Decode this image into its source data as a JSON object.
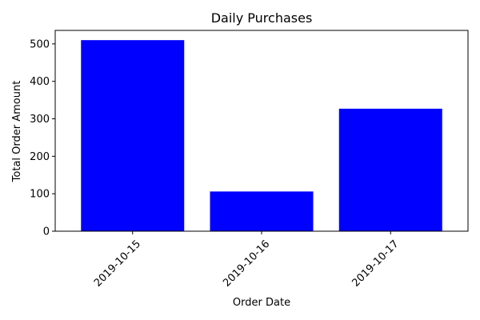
{
  "chart_data": {
    "type": "bar",
    "title": "Daily Purchases",
    "xlabel": "Order Date",
    "ylabel": "Total Order Amount",
    "categories": [
      "2019-10-15",
      "2019-10-16",
      "2019-10-17"
    ],
    "values": [
      510,
      106,
      327
    ],
    "ylim": [
      0,
      536
    ],
    "yticks": [
      0,
      100,
      200,
      300,
      400,
      500
    ],
    "bar_color": "#0000ff",
    "grid": false,
    "legend": "none"
  }
}
